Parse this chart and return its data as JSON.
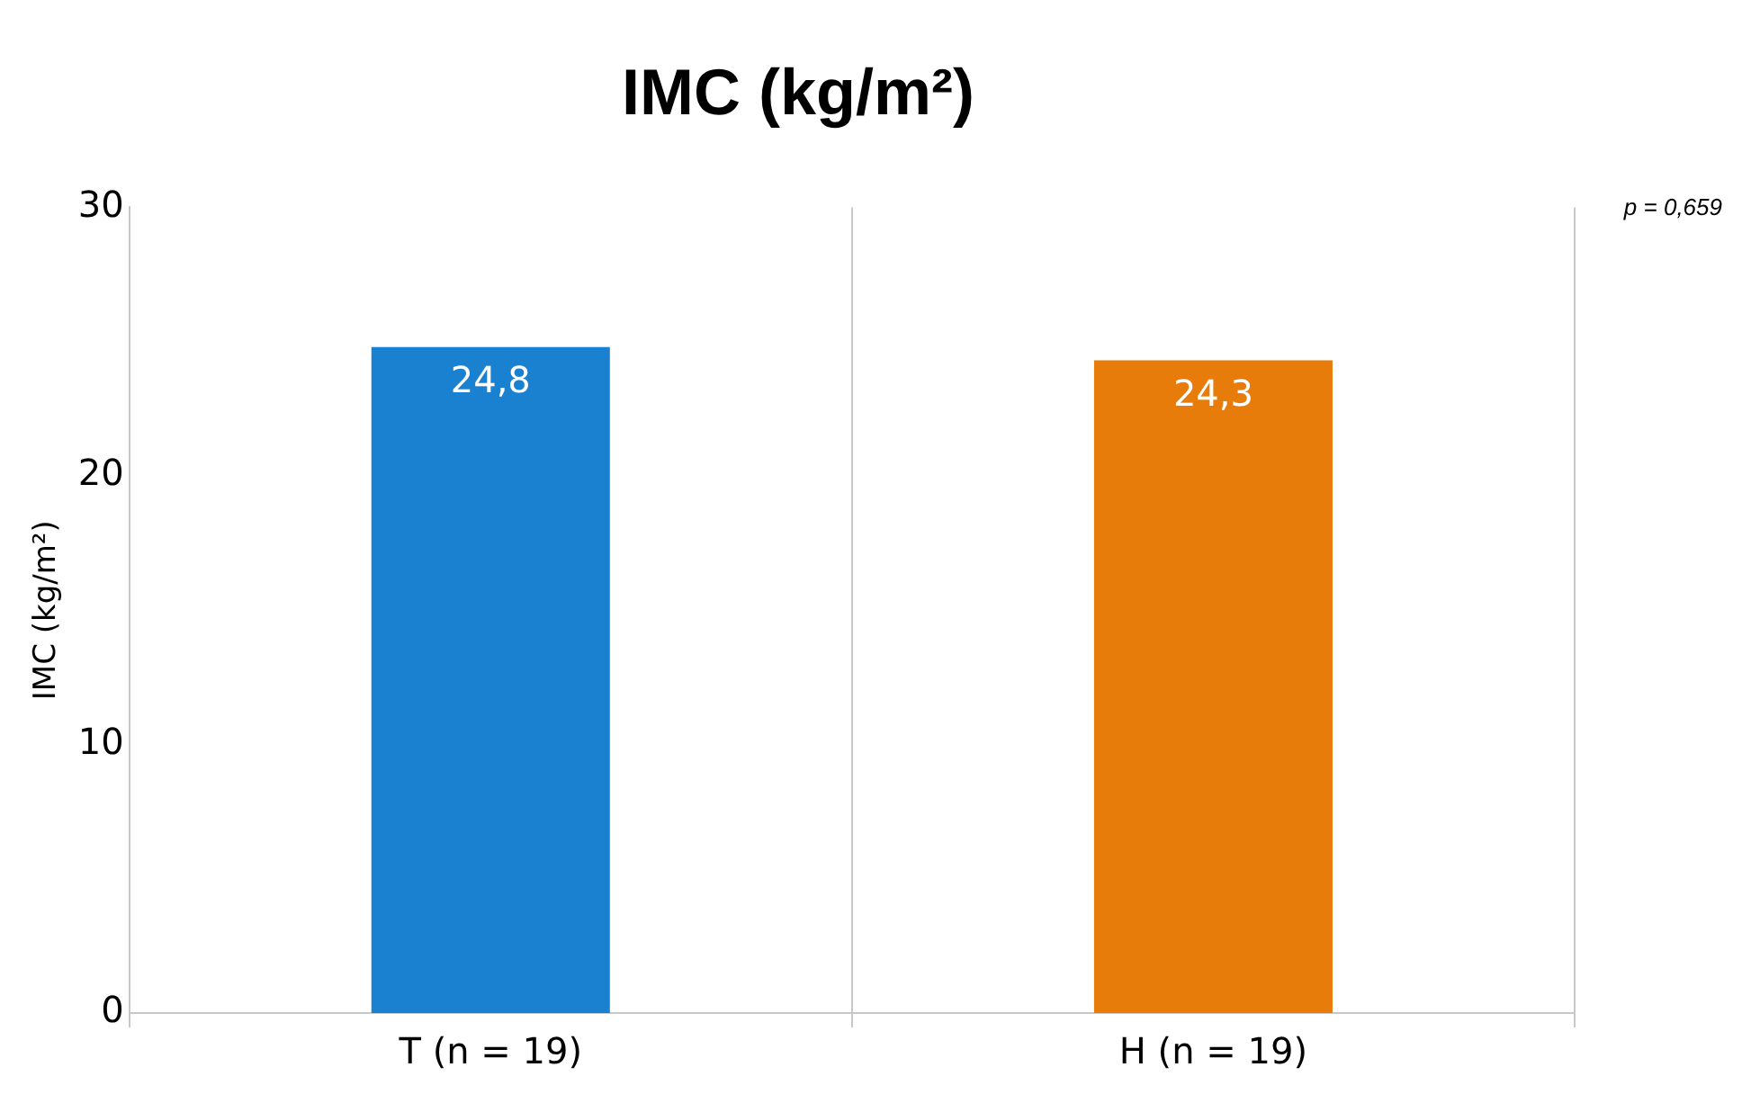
{
  "chart_data": {
    "type": "bar",
    "title": "IMC (kg/m²)",
    "ylabel": "IMC (kg/m²)",
    "categories": [
      "T (n = 19)",
      "H (n = 19)"
    ],
    "values": [
      24.8,
      24.3
    ],
    "colors": [
      "#1a80d0",
      "#e87c0a"
    ],
    "value_labels": [
      "24,8",
      "24,3"
    ],
    "ylim": [
      0,
      30
    ],
    "yticks": [
      0,
      10,
      20,
      30
    ],
    "grid": false,
    "legend": false,
    "annotations": [
      "p = 0,659"
    ]
  }
}
